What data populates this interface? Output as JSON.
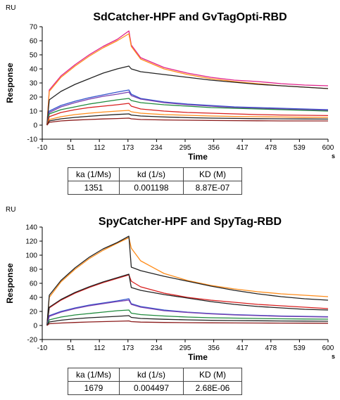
{
  "chart_data": [
    {
      "type": "line",
      "title": "SdCatcher-HPF and GvTagOpti-RBD",
      "unit_label": "RU",
      "ylabel": "Response",
      "xlabel": "Time",
      "x_unit": "s",
      "xlim": [
        -10,
        600
      ],
      "ylim": [
        -10,
        70
      ],
      "x_ticks": [
        "-10",
        "51",
        "112",
        "173",
        "234",
        "295",
        "356",
        "417",
        "478",
        "539",
        "600"
      ],
      "y_ticks": [
        "-10",
        "0",
        "10",
        "20",
        "30",
        "40",
        "50",
        "60",
        "70"
      ],
      "grid": false,
      "series": [
        {
          "color": "#e0218a",
          "x": [
            0,
            5,
            30,
            60,
            90,
            120,
            150,
            175,
            180,
            200,
            250,
            300,
            350,
            400,
            450,
            500,
            550,
            600
          ],
          "y": [
            0,
            25,
            35,
            43,
            50,
            56,
            61,
            67,
            57,
            48,
            41,
            37,
            34,
            32,
            31,
            29.5,
            28.5,
            28
          ]
        },
        {
          "color": "#ff8c1a",
          "x": [
            0,
            5,
            30,
            60,
            90,
            120,
            150,
            175,
            180,
            200,
            250,
            300,
            350,
            400,
            450,
            500,
            550,
            600
          ],
          "y": [
            0,
            24,
            34,
            42,
            49,
            55,
            60,
            65,
            56,
            47,
            40,
            36,
            33,
            31,
            29.5,
            28,
            27,
            26
          ]
        },
        {
          "color": "#222222",
          "x": [
            0,
            5,
            30,
            60,
            90,
            120,
            150,
            175,
            180,
            200,
            250,
            300,
            350,
            400,
            450,
            500,
            550,
            600
          ],
          "y": [
            0,
            18,
            24,
            29,
            33,
            37,
            40,
            42,
            40,
            38,
            36,
            34,
            32,
            30.5,
            29,
            28,
            27,
            26
          ]
        },
        {
          "color": "#3355cc",
          "x": [
            0,
            5,
            30,
            60,
            90,
            120,
            150,
            175,
            180,
            200,
            250,
            300,
            350,
            400,
            450,
            500,
            550,
            600
          ],
          "y": [
            0,
            10,
            14,
            17,
            19.5,
            21.5,
            23.5,
            25,
            22,
            19,
            16.5,
            15,
            14,
            13,
            12.5,
            12,
            11.5,
            11
          ]
        },
        {
          "color": "#7a3fb0",
          "x": [
            0,
            5,
            30,
            60,
            90,
            120,
            150,
            175,
            180,
            200,
            250,
            300,
            350,
            400,
            450,
            500,
            550,
            600
          ],
          "y": [
            0,
            9,
            13,
            16,
            18.5,
            20.5,
            22,
            23.5,
            21,
            18.5,
            16,
            14.5,
            13.5,
            12.5,
            12,
            11.5,
            11,
            10.5
          ]
        },
        {
          "color": "#1f8a3c",
          "x": [
            0,
            5,
            30,
            60,
            90,
            120,
            150,
            175,
            180,
            200,
            250,
            300,
            350,
            400,
            450,
            500,
            550,
            600
          ],
          "y": [
            0,
            8,
            11,
            13,
            15,
            16.5,
            18,
            19,
            17.5,
            16,
            14.5,
            13.5,
            12.5,
            12,
            11.5,
            11,
            10.5,
            10
          ]
        },
        {
          "color": "#d81e1e",
          "x": [
            0,
            5,
            30,
            60,
            90,
            120,
            150,
            175,
            180,
            200,
            250,
            300,
            350,
            400,
            450,
            500,
            550,
            600
          ],
          "y": [
            0,
            6,
            9,
            11,
            12.5,
            13.5,
            14.5,
            15.5,
            13.5,
            11.5,
            10,
            9,
            8.5,
            8,
            7.5,
            7.2,
            7,
            6.8
          ]
        },
        {
          "color": "#ff8c1a",
          "x": [
            0,
            5,
            30,
            60,
            90,
            120,
            150,
            175,
            180,
            200,
            250,
            300,
            350,
            400,
            450,
            500,
            550,
            600
          ],
          "y": [
            0,
            4,
            6,
            7.5,
            8.5,
            9.3,
            10,
            10.5,
            9.5,
            8.5,
            7.5,
            7,
            6.5,
            6.2,
            6,
            5.8,
            5.6,
            5.5
          ]
        },
        {
          "color": "#222222",
          "x": [
            0,
            5,
            30,
            60,
            90,
            120,
            150,
            175,
            180,
            200,
            250,
            300,
            350,
            400,
            450,
            500,
            550,
            600
          ],
          "y": [
            0,
            3,
            4.5,
            5.5,
            6.3,
            7,
            7.6,
            8,
            7.2,
            6.5,
            5.8,
            5.3,
            5,
            4.8,
            4.6,
            4.5,
            4.4,
            4.3
          ]
        },
        {
          "color": "#8b1a1a",
          "x": [
            0,
            5,
            30,
            60,
            90,
            120,
            150,
            175,
            180,
            200,
            250,
            300,
            350,
            400,
            450,
            500,
            550,
            600
          ],
          "y": [
            0,
            2,
            3,
            3.6,
            4,
            4.4,
            4.7,
            5,
            4.5,
            4,
            3.7,
            3.5,
            3.3,
            3.2,
            3.1,
            3,
            3,
            3
          ]
        }
      ],
      "table": {
        "headers": [
          "ka (1/Ms)",
          "kd (1/s)",
          "KD (M)"
        ],
        "values": [
          "1351",
          "0.001198",
          "8.87E-07"
        ]
      }
    },
    {
      "type": "line",
      "title": "SpyCatcher-HPF and SpyTag-RBD",
      "unit_label": "RU",
      "ylabel": "Response",
      "xlabel": "Time",
      "x_unit": "s",
      "xlim": [
        -10,
        600
      ],
      "ylim": [
        -20,
        140
      ],
      "x_ticks": [
        "-10",
        "51",
        "112",
        "173",
        "234",
        "295",
        "356",
        "417",
        "478",
        "539",
        "600"
      ],
      "y_ticks": [
        "-20",
        "0",
        "20",
        "40",
        "60",
        "80",
        "100",
        "120",
        "140"
      ],
      "grid": false,
      "series": [
        {
          "color": "#ff8c1a",
          "x": [
            0,
            5,
            30,
            60,
            90,
            120,
            150,
            175,
            180,
            200,
            250,
            300,
            350,
            400,
            450,
            500,
            550,
            600
          ],
          "y": [
            0,
            40,
            62,
            80,
            95,
            107,
            117,
            125,
            110,
            92,
            74,
            64,
            57,
            52,
            48,
            45,
            43,
            41
          ]
        },
        {
          "color": "#222222",
          "x": [
            0,
            5,
            30,
            60,
            90,
            120,
            150,
            175,
            180,
            200,
            250,
            300,
            350,
            400,
            450,
            500,
            550,
            600
          ],
          "y": [
            0,
            43,
            64,
            82,
            97,
            109,
            118,
            127,
            83,
            78,
            70,
            63,
            56,
            50,
            45,
            41,
            38,
            36
          ]
        },
        {
          "color": "#d81e1e",
          "x": [
            0,
            5,
            30,
            60,
            90,
            120,
            150,
            175,
            180,
            200,
            250,
            300,
            350,
            400,
            450,
            500,
            550,
            600
          ],
          "y": [
            0,
            25,
            36,
            46,
            54,
            61,
            67,
            72,
            63,
            55,
            46,
            40,
            36,
            33,
            30,
            28,
            26,
            24
          ]
        },
        {
          "color": "#222222",
          "x": [
            0,
            5,
            30,
            60,
            90,
            120,
            150,
            175,
            180,
            200,
            250,
            300,
            350,
            400,
            450,
            500,
            550,
            600
          ],
          "y": [
            0,
            26,
            37,
            47,
            55,
            62,
            68,
            73,
            54,
            50,
            44,
            39,
            34,
            30,
            27,
            25,
            23,
            22
          ]
        },
        {
          "color": "#3355cc",
          "x": [
            0,
            5,
            30,
            60,
            90,
            120,
            150,
            175,
            180,
            200,
            250,
            300,
            350,
            400,
            450,
            500,
            550,
            600
          ],
          "y": [
            0,
            14,
            20,
            25,
            29,
            32,
            35,
            38,
            31,
            27,
            22,
            19,
            17,
            15.5,
            14.5,
            13.5,
            13,
            12.5
          ]
        },
        {
          "color": "#7a3fb0",
          "x": [
            0,
            5,
            30,
            60,
            90,
            120,
            150,
            175,
            180,
            200,
            250,
            300,
            350,
            400,
            450,
            500,
            550,
            600
          ],
          "y": [
            0,
            13,
            19,
            24,
            28,
            31,
            34,
            36,
            30,
            26,
            21,
            18.5,
            16.5,
            15,
            14,
            13,
            12.5,
            12
          ]
        },
        {
          "color": "#1f8a3c",
          "x": [
            0,
            5,
            30,
            60,
            90,
            120,
            150,
            175,
            180,
            200,
            250,
            300,
            350,
            400,
            450,
            500,
            550,
            600
          ],
          "y": [
            0,
            8,
            12,
            15,
            17,
            19,
            21,
            22,
            17.5,
            15.5,
            13.5,
            12,
            11,
            10.5,
            10,
            9.5,
            9.2,
            9
          ]
        },
        {
          "color": "#222222",
          "x": [
            0,
            5,
            30,
            60,
            90,
            120,
            150,
            175,
            180,
            200,
            250,
            300,
            350,
            400,
            450,
            500,
            550,
            600
          ],
          "y": [
            0,
            5,
            7.5,
            9.5,
            11,
            12,
            13,
            14,
            11.5,
            10,
            8.8,
            8,
            7.4,
            7,
            6.7,
            6.4,
            6.2,
            6
          ]
        },
        {
          "color": "#8b1a1a",
          "x": [
            0,
            5,
            30,
            60,
            90,
            120,
            150,
            175,
            180,
            200,
            250,
            300,
            350,
            400,
            450,
            500,
            550,
            600
          ],
          "y": [
            0,
            2.5,
            3.5,
            4.3,
            5,
            5.5,
            6,
            6.5,
            5.5,
            4.8,
            4.3,
            4,
            3.8,
            3.6,
            3.5,
            3.4,
            3.3,
            3.2
          ]
        }
      ],
      "table": {
        "headers": [
          "ka (1/Ms)",
          "kd (1/s)",
          "KD (M)"
        ],
        "values": [
          "1679",
          "0.004497",
          "2.68E-06"
        ]
      }
    }
  ]
}
